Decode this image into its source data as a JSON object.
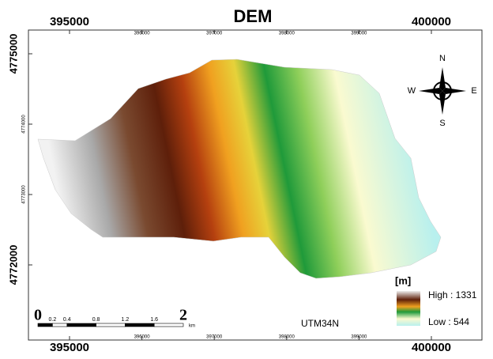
{
  "title": "DEM",
  "x_labels": [
    395000,
    396000,
    397000,
    398000,
    399000,
    400000
  ],
  "y_labels": [
    4775000,
    4774000,
    4773000,
    4772000
  ],
  "compass": {
    "n": "N",
    "e": "E",
    "s": "S",
    "w": "W"
  },
  "scale_bar": {
    "labels": [
      "0",
      "0.2",
      "0.4",
      "0.8",
      "1.2",
      "1.6",
      "2"
    ],
    "unit": "km"
  },
  "legend": {
    "unit": "[m]",
    "high": "High : 1331",
    "low": "Low : 544"
  },
  "projection": "UTM34N"
}
